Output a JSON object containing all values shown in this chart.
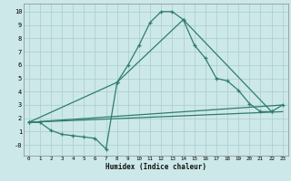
{
  "xlabel": "Humidex (Indice chaleur)",
  "bg_color": "#cce8e8",
  "grid_color": "#aacccc",
  "line_color": "#2e7d6e",
  "xlim": [
    -0.5,
    23.5
  ],
  "ylim": [
    -0.8,
    10.6
  ],
  "xticks": [
    0,
    1,
    2,
    3,
    4,
    5,
    6,
    7,
    8,
    9,
    10,
    11,
    12,
    13,
    14,
    15,
    16,
    17,
    18,
    19,
    20,
    21,
    22,
    23
  ],
  "yticks": [
    0,
    1,
    2,
    3,
    4,
    5,
    6,
    7,
    8,
    9,
    10
  ],
  "ytick_labels": [
    "-0",
    "1",
    "2",
    "3",
    "4",
    "5",
    "6",
    "7",
    "8",
    "9",
    "10"
  ],
  "line1_x": [
    0,
    1,
    2,
    3,
    4,
    5,
    6,
    7,
    8,
    9,
    10,
    11,
    12,
    13,
    14,
    15,
    16,
    17,
    18,
    19,
    20,
    21,
    22,
    23
  ],
  "line1_y": [
    1.7,
    1.7,
    1.1,
    0.8,
    0.7,
    0.6,
    0.5,
    -0.3,
    4.7,
    6.0,
    7.5,
    9.2,
    10.0,
    10.0,
    9.4,
    7.5,
    6.5,
    5.0,
    4.8,
    4.1,
    3.1,
    2.5,
    2.5,
    3.0
  ],
  "line2_x": [
    0,
    8,
    14,
    22
  ],
  "line2_y": [
    1.7,
    4.7,
    9.4,
    2.5
  ],
  "line3_x": [
    0,
    23
  ],
  "line3_y": [
    1.7,
    3.0
  ],
  "line4_x": [
    0,
    23
  ],
  "line4_y": [
    1.7,
    2.5
  ]
}
